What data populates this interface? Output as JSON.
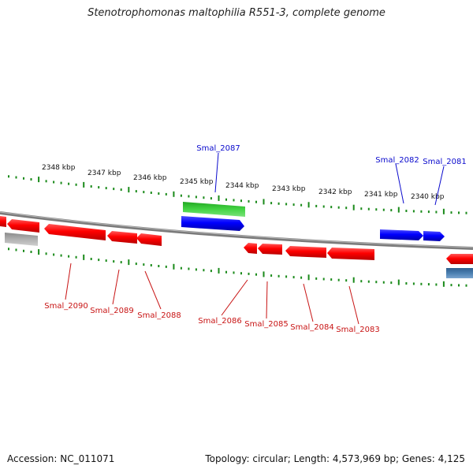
{
  "title": "Stenotrophomonas maltophilia R551-3, complete genome",
  "scale_labels": [
    "2348 kbp",
    "2347 kbp",
    "2346 kbp",
    "2345 kbp",
    "2344 kbp",
    "2343 kbp",
    "2342 kbp",
    "2341 kbp",
    "2340 kbp"
  ],
  "forward_genes": [
    "Smal_2087",
    "Smal_2082",
    "Smal_2081"
  ],
  "reverse_genes": [
    "Smal_2090",
    "Smal_2089",
    "Smal_2088",
    "Smal_2086",
    "Smal_2085",
    "Smal_2084",
    "Smal_2083"
  ],
  "colors": {
    "forward_label": "#0a0acd",
    "reverse_label": "#c81414",
    "forward_gene": "#0000ff",
    "reverse_gene": "#ff0000",
    "green_gene": "#33cc33",
    "gray_gene": "#aaaaaa",
    "steel_gene": "#4a7fb0",
    "backbone": "#808080",
    "ticks": "#1a8a1a"
  },
  "footer": {
    "accession": "Accession: NC_011071",
    "stats": "Topology: circular; Length: 4,573,969 bp; Genes: 4,125"
  }
}
